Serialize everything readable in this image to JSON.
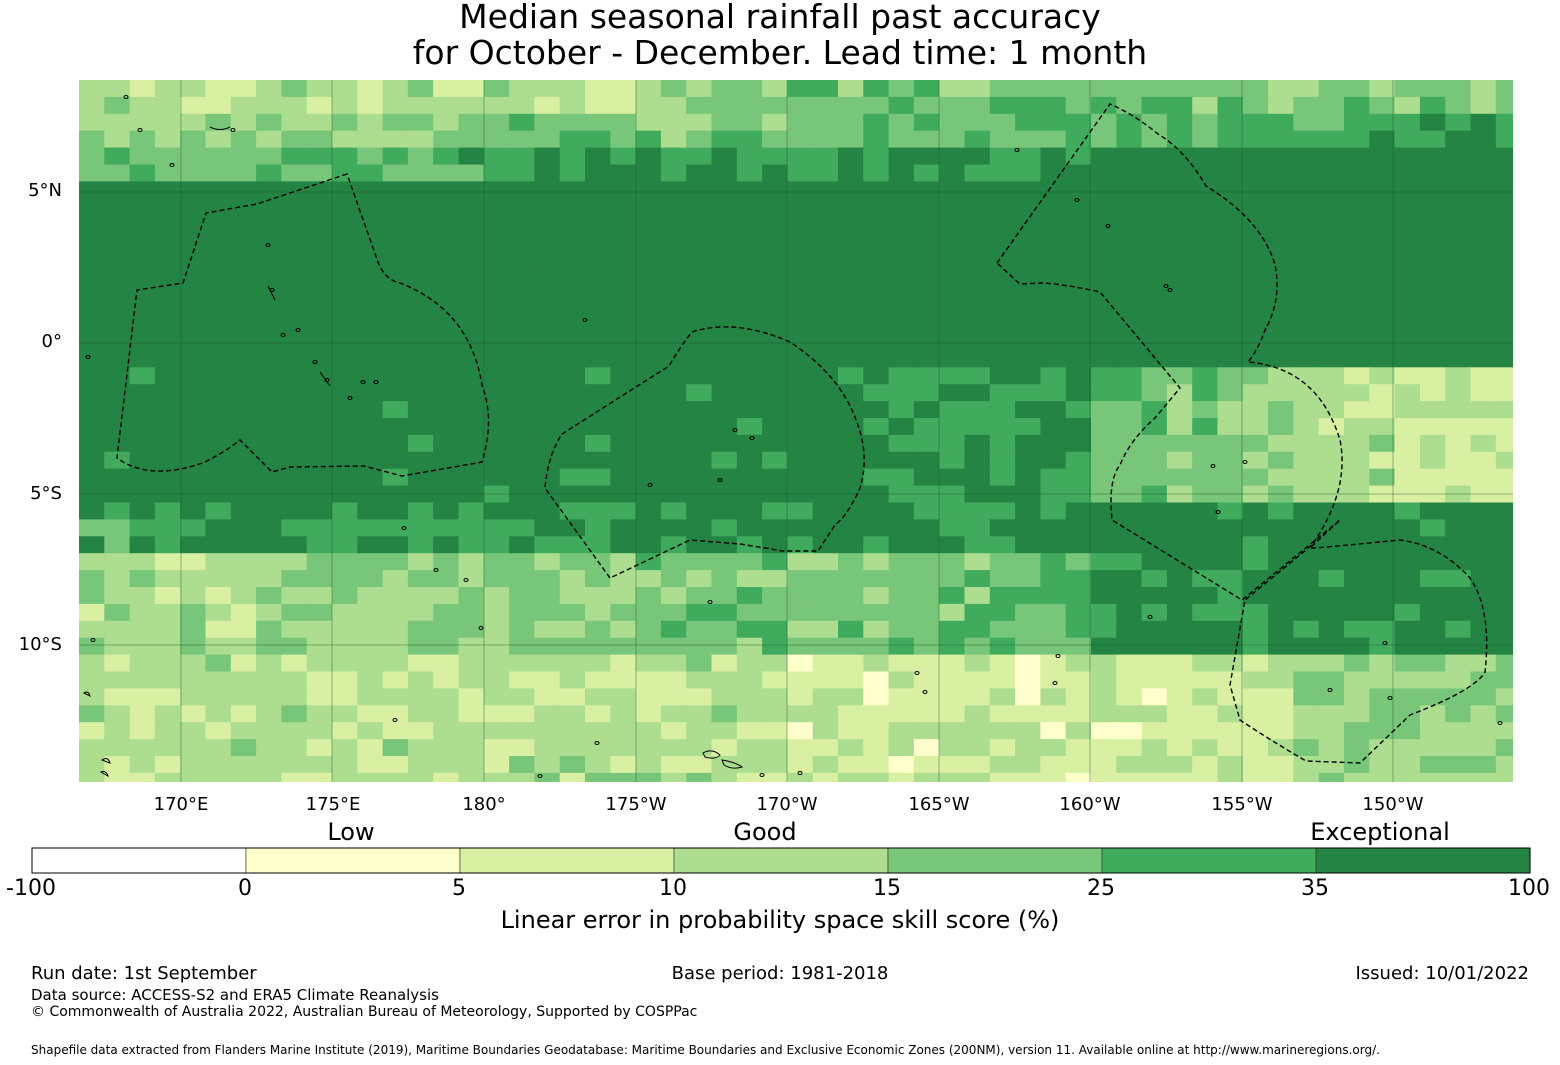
{
  "title": {
    "line1": "Median seasonal rainfall past accuracy",
    "line2": "for October - December. Lead time: 1 month"
  },
  "map": {
    "lat_labels": [
      "5°N",
      "0°",
      "5°S",
      "10°S"
    ],
    "lon_labels": [
      "170°E",
      "175°E",
      "180°",
      "175°W",
      "170°W",
      "165°W",
      "160°W",
      "155°W",
      "150°W"
    ],
    "category_colors": [
      "#ffffff",
      "#ffffcc",
      "#d9f0a3",
      "#addd8e",
      "#78c679",
      "#41ab5d",
      "#238443"
    ]
  },
  "colorbar": {
    "categories": [
      "Low",
      "Good",
      "Exceptional"
    ],
    "ticks": [
      "-100",
      "0",
      "5",
      "10",
      "15",
      "25",
      "35",
      "100"
    ],
    "colors": [
      "#ffffff",
      "#ffffcc",
      "#d9f0a3",
      "#addd8e",
      "#78c679",
      "#41ab5d",
      "#238443"
    ],
    "label": "Linear error in probability space skill score (%)"
  },
  "footer": {
    "run_date": "Run date: 1st September",
    "base_period": "Base period: 1981-2018",
    "issued": "Issued: 10/01/2022",
    "data_source": "Data source: ACCESS-S2 and ERA5 Climate Reanalysis",
    "copyright": "© Commonwealth of Australia 2022, Australian Bureau of Meteorology, Supported by COSPPac",
    "shapefile": "Shapefile data extracted from Flanders Marine Institute (2019), Maritime Boundaries Geodatabase: Maritime Boundaries and Exclusive Economic Zones (200NM), version 11. Available online at http://www.marineregions.org/."
  }
}
